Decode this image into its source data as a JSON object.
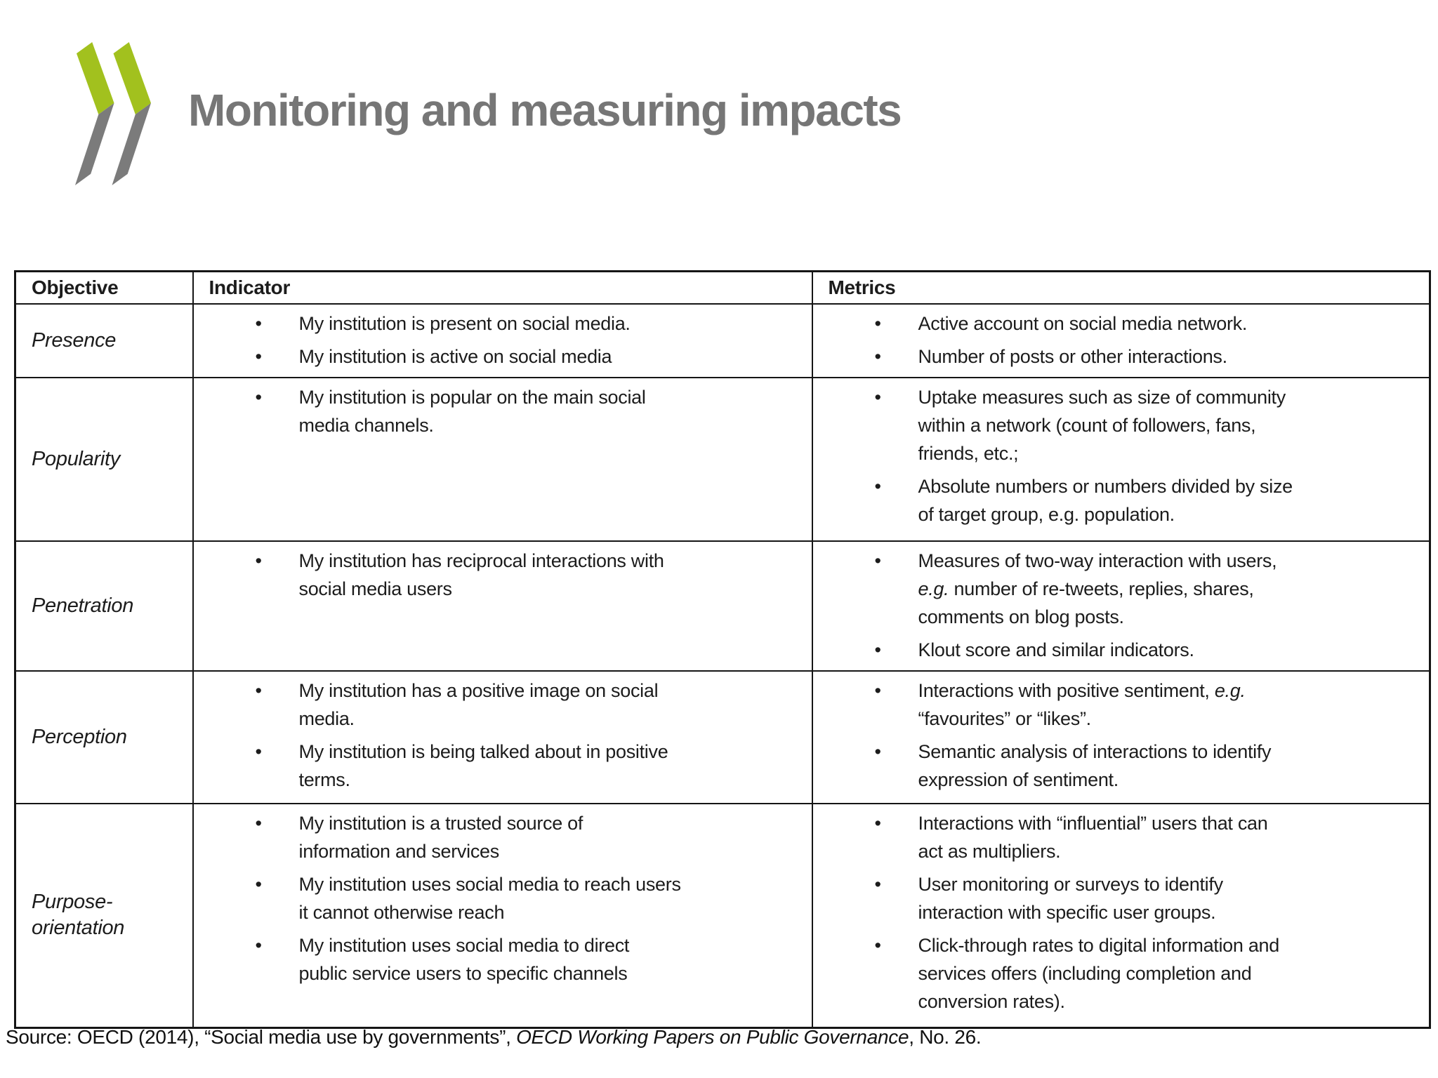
{
  "slide": {
    "title": "Monitoring and measuring impacts",
    "logo": {
      "green": "#A2C11E",
      "gray": "#7B7B7B"
    }
  },
  "table": {
    "columns": [
      "Objective",
      "Indicator",
      "Metrics"
    ],
    "rows": [
      {
        "objective": "Presence",
        "indicator": [
          [
            {
              "t": "My institution is present on social media."
            }
          ],
          [
            {
              "t": "My institution is active on social media"
            }
          ]
        ],
        "metrics": [
          [
            {
              "t": "Active account on social media network."
            }
          ],
          [
            {
              "t": "Number of posts or other interactions."
            }
          ]
        ]
      },
      {
        "objective": "Popularity",
        "indicator": [
          [
            {
              "t": "My institution is popular on the main social\nmedia channels."
            }
          ]
        ],
        "metrics": [
          [
            {
              "t": "Uptake measures such as size of community\nwithin a network (count of followers, fans,\nfriends, etc.;"
            }
          ],
          [
            {
              "t": "Absolute numbers or numbers divided by size\nof target group, e.g. population."
            }
          ]
        ]
      },
      {
        "objective": "Penetration",
        "indicator": [
          [
            {
              "t": "My institution has reciprocal interactions with\nsocial media users"
            }
          ]
        ],
        "metrics": [
          [
            {
              "t": "Measures of two-way interaction with users,\n"
            },
            {
              "t": "e.g.",
              "i": true
            },
            {
              "t": " number of re-tweets, replies, shares,\ncomments on blog posts."
            }
          ],
          [
            {
              "t": "Klout score and similar indicators."
            }
          ]
        ]
      },
      {
        "objective": "Perception",
        "indicator": [
          [
            {
              "t": "My institution has a positive image on social\nmedia."
            }
          ],
          [
            {
              "t": "My institution is being talked about in positive\nterms."
            }
          ]
        ],
        "metrics": [
          [
            {
              "t": "Interactions with positive sentiment, "
            },
            {
              "t": "e.g.",
              "i": true
            },
            {
              "t": "\n“favourites” or “likes”."
            }
          ],
          [
            {
              "t": "Semantic analysis of interactions to identify\nexpression of sentiment."
            }
          ]
        ]
      },
      {
        "objective": "Purpose-\norientation",
        "indicator": [
          [
            {
              "t": "My institution is a trusted source of\ninformation and services"
            }
          ],
          [
            {
              "t": "My institution uses social media to reach users\nit cannot otherwise reach"
            }
          ],
          [
            {
              "t": "My institution uses social media to direct\npublic service users to specific channels"
            }
          ]
        ],
        "metrics": [
          [
            {
              "t": "Interactions with “influential” users that can\nact as multipliers."
            }
          ],
          [
            {
              "t": "User monitoring or surveys to identify\ninteraction with specific user groups."
            }
          ],
          [
            {
              "t": "Click-through rates to digital information and\nservices offers (including completion and\nconversion rates)."
            }
          ]
        ]
      }
    ]
  },
  "footer": {
    "source": [
      {
        "t": "Source: OECD (2014), “Social media use by governments”, "
      },
      {
        "t": "OECD Working Papers on Public Governance",
        "i": true
      },
      {
        "t": ", No. 26."
      }
    ]
  }
}
